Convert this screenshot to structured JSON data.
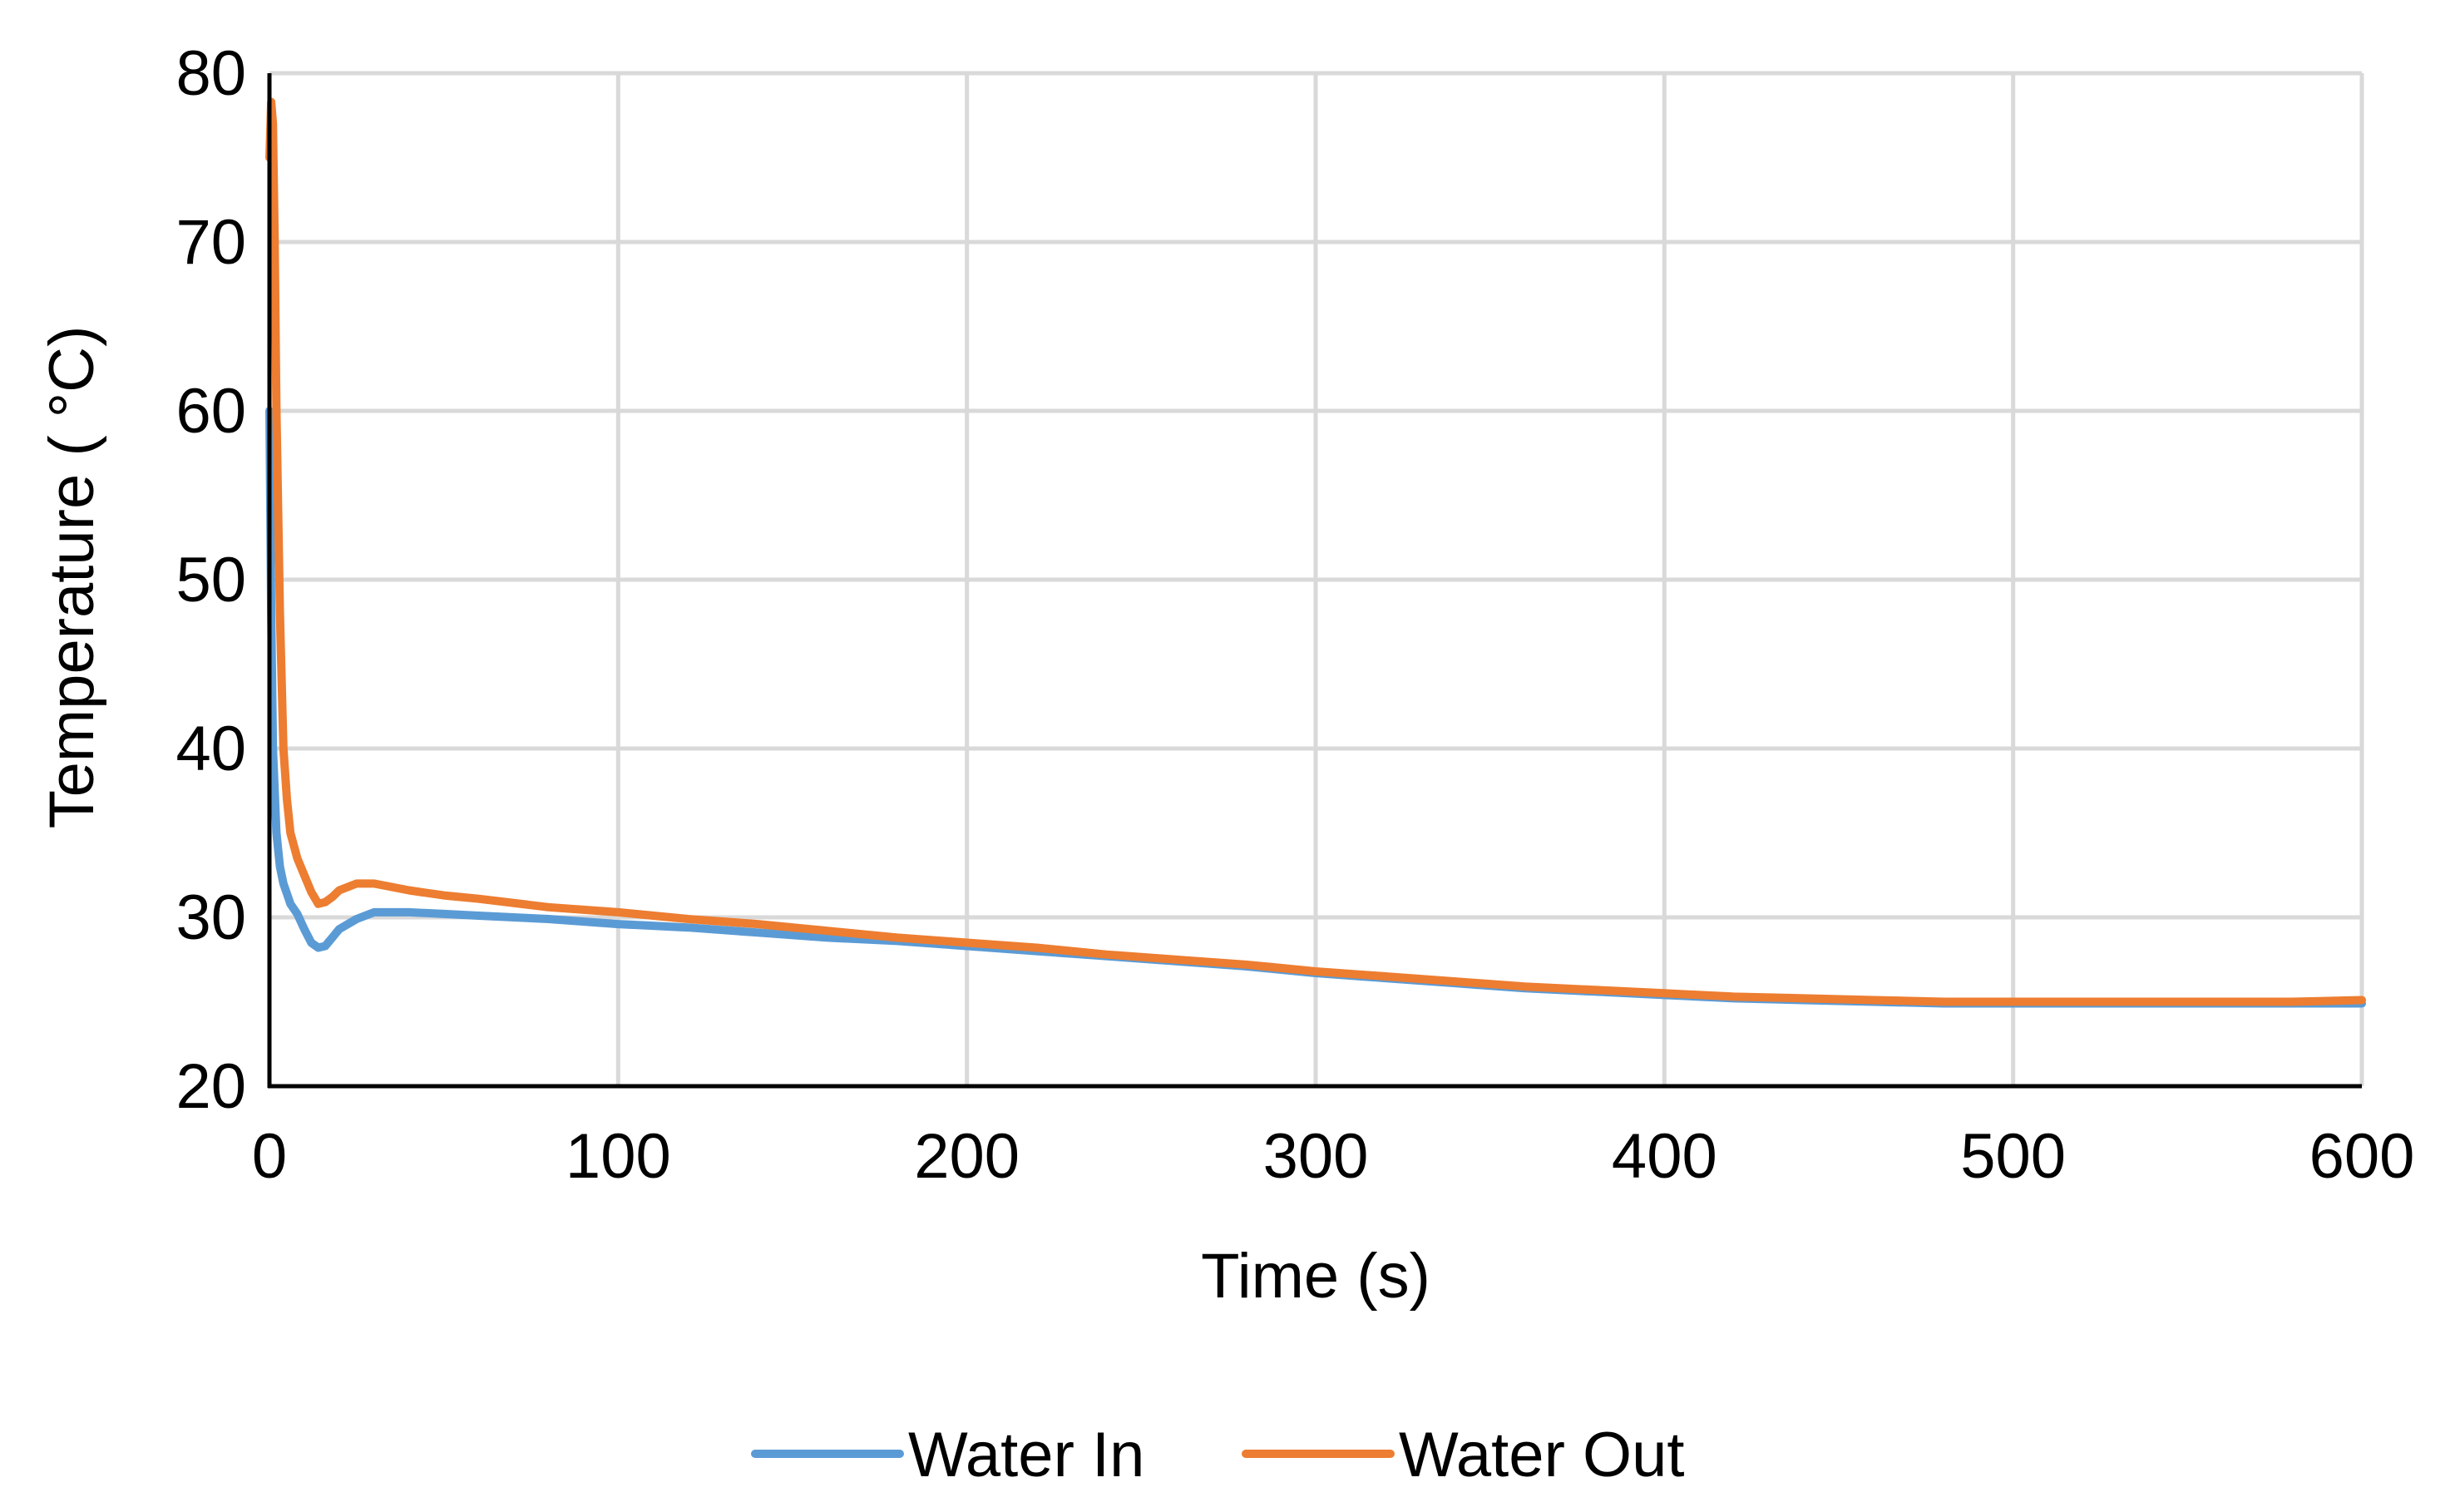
{
  "chart_data": {
    "type": "line",
    "title": "",
    "xlabel": "Time (s)",
    "ylabel": "Temperature ( °C)",
    "xlim": [
      0,
      600
    ],
    "ylim": [
      20,
      80
    ],
    "xticks": [
      0,
      100,
      200,
      300,
      400,
      500,
      600
    ],
    "yticks": [
      20,
      30,
      40,
      50,
      60,
      70,
      80
    ],
    "x_tick_labels": [
      "0",
      "100",
      "200",
      "300",
      "400",
      "500",
      "600"
    ],
    "y_tick_labels": [
      "20",
      "30",
      "40",
      "50",
      "60",
      "70",
      "80"
    ],
    "grid": true,
    "legend_position": "bottom-center",
    "series": [
      {
        "name": "Water In",
        "color": "#5b9bd5",
        "x": [
          0,
          0.5,
          1,
          2,
          3,
          4,
          6,
          8,
          10,
          12,
          14,
          16,
          18,
          20,
          25,
          30,
          40,
          50,
          60,
          80,
          100,
          120,
          140,
          160,
          180,
          200,
          220,
          240,
          260,
          280,
          300,
          320,
          340,
          360,
          380,
          400,
          420,
          440,
          460,
          480,
          500,
          520,
          540,
          560,
          580,
          600
        ],
        "values": [
          60,
          48,
          40,
          35,
          33,
          32,
          30.8,
          30.2,
          29.3,
          28.5,
          28.2,
          28.3,
          28.8,
          29.3,
          29.9,
          30.3,
          30.3,
          30.2,
          30.1,
          29.9,
          29.6,
          29.4,
          29.1,
          28.8,
          28.6,
          28.3,
          28.0,
          27.7,
          27.4,
          27.1,
          26.7,
          26.4,
          26.1,
          25.8,
          25.6,
          25.4,
          25.2,
          25.1,
          25.0,
          24.9,
          24.9,
          24.9,
          24.9,
          24.9,
          24.9,
          24.9
        ]
      },
      {
        "name": "Water Out",
        "color": "#ed7d31",
        "x": [
          0,
          0.5,
          1,
          1.5,
          2,
          3,
          4,
          5,
          6,
          8,
          10,
          12,
          14,
          16,
          18,
          20,
          25,
          30,
          40,
          50,
          60,
          80,
          100,
          120,
          140,
          160,
          180,
          200,
          220,
          240,
          260,
          280,
          300,
          320,
          340,
          360,
          380,
          400,
          420,
          440,
          460,
          480,
          500,
          520,
          540,
          560,
          580,
          600
        ],
        "values": [
          75,
          78.3,
          77,
          70,
          60,
          48,
          40,
          37,
          35,
          33.5,
          32.5,
          31.5,
          30.8,
          30.9,
          31.2,
          31.6,
          32.0,
          32.0,
          31.6,
          31.3,
          31.1,
          30.6,
          30.3,
          29.9,
          29.6,
          29.2,
          28.8,
          28.5,
          28.2,
          27.8,
          27.5,
          27.2,
          26.8,
          26.5,
          26.2,
          25.9,
          25.7,
          25.5,
          25.3,
          25.2,
          25.1,
          25.0,
          25.0,
          25.0,
          25.0,
          25.0,
          25.0,
          25.1
        ]
      }
    ]
  }
}
